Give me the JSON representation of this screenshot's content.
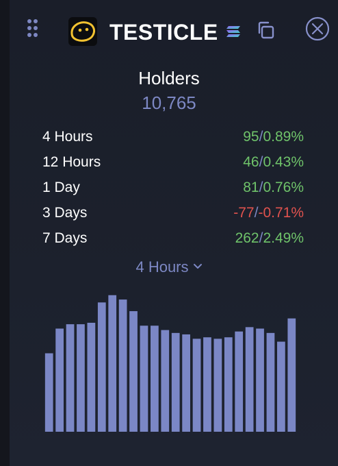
{
  "header": {
    "token_name": "TESTICLE",
    "icons": {
      "drag": "drag-handle-icon",
      "logo": "token-logo-icon",
      "chain": "solana-icon",
      "copy": "copy-icon",
      "close": "close-icon"
    }
  },
  "holders": {
    "title": "Holders",
    "count": "10,765"
  },
  "stats": [
    {
      "label": "4 Hours",
      "change": "95",
      "percent": "0.89%",
      "trend": "up"
    },
    {
      "label": "12 Hours",
      "change": "46",
      "percent": "0.43%",
      "trend": "up"
    },
    {
      "label": "1 Day",
      "change": "81",
      "percent": "0.76%",
      "trend": "up"
    },
    {
      "label": "3 Days",
      "change": "-77",
      "percent": "-0.71%",
      "trend": "down"
    },
    {
      "label": "7 Days",
      "change": "262",
      "percent": "2.49%",
      "trend": "up"
    }
  ],
  "separator": "/",
  "period_select": {
    "selected": "4 Hours"
  },
  "colors": {
    "accent": "#7d88c4",
    "positive": "#6fc36a",
    "negative": "#e0524e",
    "bar": "#7b87c6",
    "background": "#1a1e29"
  },
  "chart_data": {
    "type": "bar",
    "values": [
      54,
      71,
      74,
      74,
      75,
      89,
      94,
      91,
      83,
      73,
      73,
      70,
      68,
      67,
      64,
      65,
      64,
      65,
      69,
      72,
      71,
      68,
      62,
      78
    ],
    "ylim": [
      0,
      100
    ]
  }
}
